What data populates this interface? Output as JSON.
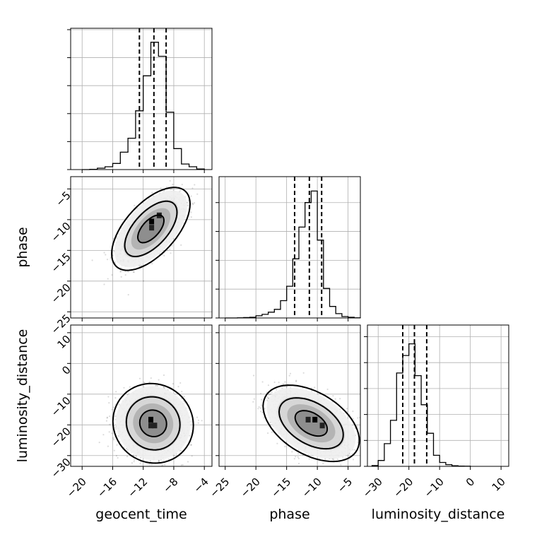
{
  "chart_data": {
    "type": "corner",
    "parameters": [
      "geocent_time",
      "phase",
      "luminosity_distance"
    ],
    "ranges": {
      "geocent_time": [
        -21.5,
        -3.0
      ],
      "phase": [
        -26.0,
        -3.0
      ],
      "luminosity_distance": [
        -33.5,
        12.5
      ]
    },
    "ticks": {
      "geocent_time": [
        -20,
        -16,
        -12,
        -8,
        -4
      ],
      "phase": [
        -25,
        -20,
        -15,
        -10,
        -5
      ],
      "luminosity_distance": [
        -30,
        -20,
        -10,
        0,
        10
      ]
    },
    "tick_labels": {
      "geocent_time": [
        "−20",
        "−16",
        "−12",
        "−8",
        "−4"
      ],
      "phase": [
        "−25",
        "−20",
        "−15",
        "−10",
        "−5"
      ],
      "luminosity_distance": [
        "−30",
        "−20",
        "−10",
        "0",
        "10"
      ]
    },
    "grid": true,
    "histograms": [
      {
        "param": "geocent_time",
        "edges": [
          -20,
          -19,
          -18,
          -17,
          -16,
          -15,
          -14,
          -13,
          -12,
          -11,
          -10,
          -9,
          -8,
          -7,
          -6,
          -5,
          -4
        ],
        "counts": [
          0,
          1,
          5,
          10,
          22,
          62,
          112,
          210,
          335,
          455,
          405,
          205,
          75,
          20,
          10,
          2
        ],
        "quantiles": [
          -12.5,
          -10.6,
          -9.0
        ],
        "ymax": 505
      },
      {
        "param": "phase",
        "edges": [
          -25,
          -24,
          -23,
          -22,
          -21,
          -20,
          -19,
          -18,
          -17,
          -16,
          -15,
          -14,
          -13,
          -12,
          -11,
          -10,
          -9,
          -8,
          -7,
          -6,
          -5,
          -4,
          -3
        ],
        "counts": [
          0,
          0,
          1,
          3,
          5,
          15,
          25,
          40,
          60,
          120,
          220,
          410,
          630,
          800,
          880,
          540,
          205,
          80,
          30,
          10,
          5,
          1
        ],
        "quantiles": [
          -13.7,
          -11.3,
          -9.3
        ],
        "ymax": 980
      },
      {
        "param": "luminosity_distance",
        "edges": [
          -32,
          -30,
          -28,
          -26,
          -24,
          -22,
          -20,
          -18,
          -16,
          -14,
          -12,
          -10,
          -8,
          -6,
          -4,
          -2,
          0
        ],
        "counts": [
          6,
          45,
          175,
          355,
          720,
          855,
          945,
          700,
          475,
          255,
          85,
          30,
          13,
          5,
          2,
          1
        ],
        "quantiles": [
          -22.0,
          -18.2,
          -14.2
        ],
        "ymax": 1090
      }
    ],
    "pairs": [
      {
        "x": "geocent_time",
        "y": "phase",
        "mean": [
          -11.0,
          -11.5
        ],
        "sd": [
          1.9,
          2.5
        ],
        "rho": 0.6,
        "levels": [
          1.0,
          2.0,
          3.0
        ],
        "peak_cells": [
          [
            -10.9,
            -10.3
          ],
          [
            -9.9,
            -9.3
          ],
          [
            -10.9,
            -11.3
          ]
        ]
      },
      {
        "x": "geocent_time",
        "y": "luminosity_distance",
        "mean": [
          -10.7,
          -19.5
        ],
        "sd": [
          1.95,
          4.8
        ],
        "rho": -0.05,
        "levels": [
          1.0,
          2.0,
          3.0
        ],
        "peak_cells": [
          [
            -11.0,
            -18.3
          ],
          [
            -10.5,
            -20.2
          ],
          [
            -11.0,
            -20.2
          ]
        ]
      },
      {
        "x": "phase",
        "y": "luminosity_distance",
        "mean": [
          -11.0,
          -19.5
        ],
        "sd": [
          2.9,
          4.6
        ],
        "rho": -0.45,
        "levels": [
          1.0,
          2.0,
          3.0
        ],
        "peak_cells": [
          [
            -10.4,
            -18.3
          ],
          [
            -9.2,
            -20.2
          ],
          [
            -11.5,
            -18.3
          ]
        ]
      }
    ]
  }
}
